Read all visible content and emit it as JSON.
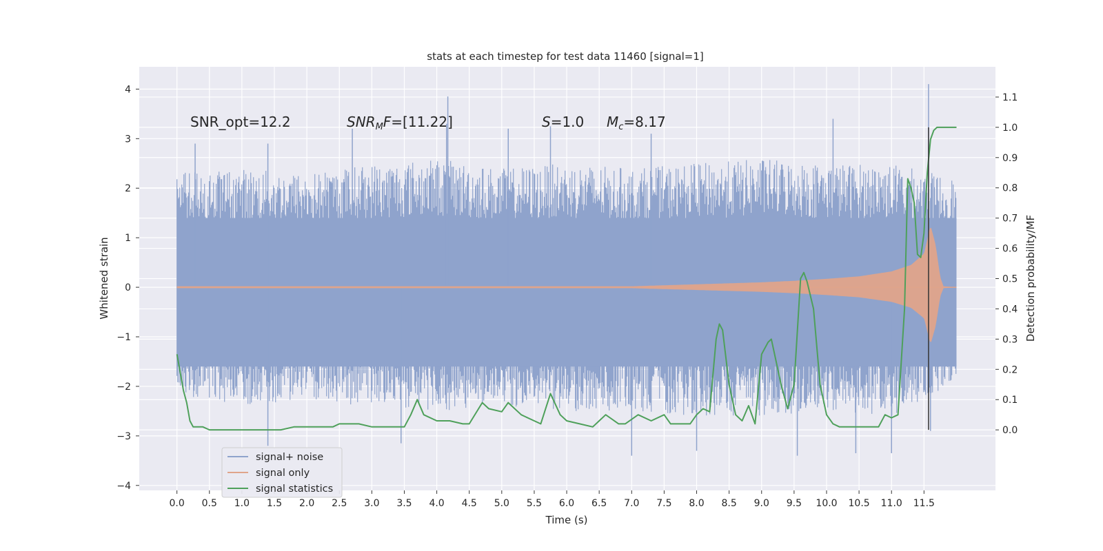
{
  "chart_data": {
    "type": "line",
    "title": "stats at each timestep for test data 11460 [signal=1]",
    "xlabel": "Time (s)",
    "ylabel_left": "Whitened strain",
    "ylabel_right": "Detection probability/MF",
    "xlim": [
      -0.58,
      12.6
    ],
    "ylim_left": [
      -4.1,
      4.45
    ],
    "ylim_right": [
      -0.2,
      1.2
    ],
    "x_ticks": [
      "0.0",
      "0.5",
      "1.0",
      "1.5",
      "2.0",
      "2.5",
      "3.0",
      "3.5",
      "4.0",
      "4.5",
      "5.0",
      "5.5",
      "6.0",
      "6.5",
      "7.0",
      "7.5",
      "8.0",
      "8.5",
      "9.0",
      "9.5",
      "10.0",
      "10.5",
      "11.0",
      "11.5"
    ],
    "y_ticks_left": [
      "4",
      "3",
      "2",
      "1",
      "0",
      "−1",
      "−2",
      "−3",
      "−4"
    ],
    "y_ticks_right": [
      "1.1",
      "1.0",
      "0.9",
      "0.8",
      "0.7",
      "0.6",
      "0.5",
      "0.4",
      "0.3",
      "0.2",
      "0.1",
      "0.0"
    ],
    "grid": true,
    "legend_position": "lower-left",
    "annotations": {
      "snr_opt": "SNR_opt=12.2",
      "snr_mf_base": "SNR",
      "snr_mf_sub": "M",
      "snr_mf_rest": "F=[11.22]",
      "s_sym": "S",
      "s_val": "=1.0",
      "mc_sym": "M",
      "mc_sub": "c",
      "mc_val": "=8.17"
    },
    "marker_time": 11.57,
    "colors": {
      "noise": "#8fa3cc",
      "signal": "#e0a48a",
      "stat": "#4ea05a",
      "background": "#eaeaf2",
      "grid": "#ffffff",
      "marker": "#333333"
    },
    "series": [
      {
        "name": "signal+ noise",
        "kind": "noise_band",
        "envelope_t": [
          0.0,
          1.0,
          2.0,
          3.0,
          4.0,
          5.0,
          6.0,
          7.0,
          8.0,
          9.0,
          10.0,
          11.0,
          12.0
        ],
        "envelope_hi": [
          2.3,
          2.4,
          2.3,
          2.5,
          2.6,
          2.4,
          2.5,
          2.4,
          2.5,
          2.6,
          2.5,
          2.5,
          2.2
        ],
        "envelope_lo": [
          -2.2,
          -2.4,
          -2.3,
          -2.4,
          -2.5,
          -2.4,
          -2.5,
          -2.5,
          -2.6,
          -2.6,
          -2.5,
          -2.6,
          -1.9
        ],
        "peaks": [
          [
            0.28,
            2.9
          ],
          [
            1.4,
            2.9
          ],
          [
            2.7,
            3.2
          ],
          [
            4.17,
            3.85
          ],
          [
            4.15,
            3.3
          ],
          [
            5.1,
            3.2
          ],
          [
            5.75,
            3.25
          ],
          [
            7.3,
            3.1
          ],
          [
            10.1,
            3.4
          ],
          [
            11.57,
            4.1
          ],
          [
            1.4,
            -3.2
          ],
          [
            3.45,
            -3.15
          ],
          [
            7.0,
            -3.4
          ],
          [
            8.0,
            -3.3
          ],
          [
            9.55,
            -3.4
          ],
          [
            10.45,
            -3.35
          ],
          [
            11.0,
            -3.35
          ],
          [
            11.6,
            -2.9
          ]
        ]
      },
      {
        "name": "signal only",
        "kind": "chirp",
        "t": [
          0.0,
          7.0,
          8.0,
          9.0,
          9.5,
          10.0,
          10.5,
          11.0,
          11.3,
          11.5,
          11.6,
          11.68,
          11.75,
          11.8,
          12.0
        ],
        "amp": [
          0.02,
          0.02,
          0.06,
          0.1,
          0.13,
          0.17,
          0.22,
          0.32,
          0.45,
          0.68,
          1.25,
          0.85,
          0.2,
          0.02,
          0.0
        ]
      },
      {
        "name": "signal statistics",
        "kind": "line",
        "x": [
          0.0,
          0.1,
          0.15,
          0.2,
          0.25,
          0.3,
          0.35,
          0.4,
          0.5,
          0.6,
          0.8,
          1.0,
          1.2,
          1.4,
          1.5,
          1.6,
          1.8,
          1.9,
          2.0,
          2.2,
          2.3,
          2.4,
          2.5,
          2.6,
          2.8,
          3.0,
          3.2,
          3.4,
          3.5,
          3.6,
          3.7,
          3.8,
          4.0,
          4.2,
          4.4,
          4.5,
          4.7,
          4.8,
          5.0,
          5.1,
          5.3,
          5.5,
          5.6,
          5.75,
          5.9,
          6.0,
          6.2,
          6.4,
          6.5,
          6.6,
          6.8,
          6.9,
          7.1,
          7.3,
          7.5,
          7.6,
          7.8,
          7.9,
          8.0,
          8.1,
          8.2,
          8.3,
          8.35,
          8.4,
          8.5,
          8.6,
          8.7,
          8.8,
          8.9,
          9.0,
          9.1,
          9.15,
          9.2,
          9.3,
          9.4,
          9.5,
          9.6,
          9.65,
          9.7,
          9.8,
          9.9,
          10.0,
          10.1,
          10.2,
          10.4,
          10.6,
          10.8,
          10.9,
          11.0,
          11.1,
          11.2,
          11.25,
          11.3,
          11.35,
          11.4,
          11.45,
          11.5,
          11.55,
          11.6,
          11.65,
          11.7,
          11.75,
          11.8,
          11.9,
          12.0
        ],
        "y": [
          0.25,
          0.13,
          0.09,
          0.03,
          0.01,
          0.01,
          0.01,
          0.01,
          0.0,
          0.0,
          0.0,
          0.0,
          0.0,
          0.0,
          0.0,
          0.0,
          0.01,
          0.01,
          0.01,
          0.01,
          0.01,
          0.01,
          0.02,
          0.02,
          0.02,
          0.01,
          0.01,
          0.01,
          0.01,
          0.05,
          0.1,
          0.05,
          0.03,
          0.03,
          0.02,
          0.02,
          0.09,
          0.07,
          0.06,
          0.09,
          0.05,
          0.03,
          0.02,
          0.12,
          0.05,
          0.03,
          0.02,
          0.01,
          0.03,
          0.05,
          0.02,
          0.02,
          0.05,
          0.03,
          0.05,
          0.02,
          0.02,
          0.02,
          0.05,
          0.07,
          0.06,
          0.3,
          0.35,
          0.33,
          0.15,
          0.05,
          0.03,
          0.08,
          0.02,
          0.25,
          0.29,
          0.3,
          0.25,
          0.15,
          0.07,
          0.15,
          0.5,
          0.52,
          0.49,
          0.4,
          0.15,
          0.05,
          0.02,
          0.01,
          0.01,
          0.01,
          0.01,
          0.05,
          0.04,
          0.05,
          0.4,
          0.83,
          0.8,
          0.75,
          0.58,
          0.57,
          0.65,
          0.85,
          0.96,
          0.99,
          1.0,
          1.0,
          1.0,
          1.0,
          1.0
        ]
      }
    ]
  }
}
